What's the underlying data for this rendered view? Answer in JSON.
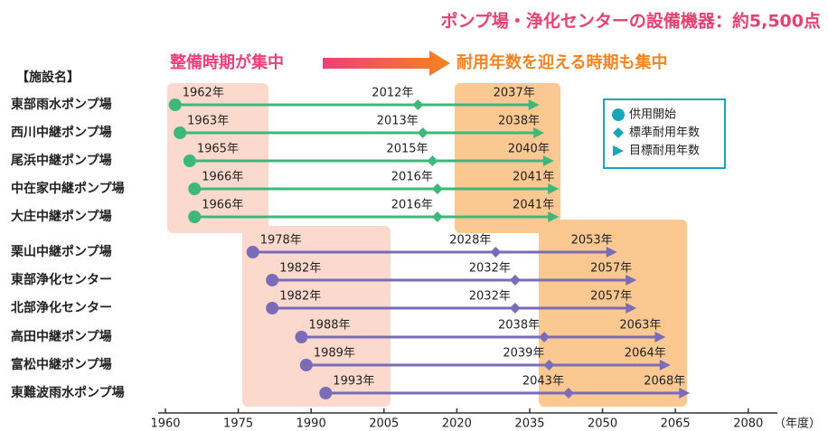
{
  "chart_data": {
    "type": "timeline",
    "title": "ポンプ場・浄化センターの設備機器：約5,500点",
    "annotations": [
      "整備時期が集中",
      "耐用年数を迎える時期も集中"
    ],
    "category_header": "【施設名】",
    "categories": [
      "東部雨水ポンプ場",
      "西川中継ポンプ場",
      "尾浜中継ポンプ場",
      "中在家中継ポンプ場",
      "大庄中継ポンプ場",
      "栗山中継ポンプ場",
      "東部浄化センター",
      "北部浄化センター",
      "高田中継ポンプ場",
      "富松中継ポンプ場",
      "東難波雨水ポンプ場"
    ],
    "row_colors": [
      "#3db878",
      "#3db878",
      "#3db878",
      "#3db878",
      "#3db878",
      "#7b6cb8",
      "#7b6cb8",
      "#7b6cb8",
      "#7b6cb8",
      "#7b6cb8",
      "#7b6cb8"
    ],
    "series": [
      {
        "name": "供用開始",
        "color": "#1aa6b7",
        "marker": "circle",
        "values": [
          1962,
          1963,
          1965,
          1966,
          1966,
          1978,
          1982,
          1982,
          1988,
          1989,
          1993
        ],
        "value_labels": [
          "1962年",
          "1963年",
          "1965年",
          "1966年",
          "1966年",
          "1978年",
          "1982年",
          "1982年",
          "1988年",
          "1989年",
          "1993年"
        ]
      },
      {
        "name": "標準耐用年数",
        "color": "#1aa6b7",
        "marker": "diamond",
        "values": [
          2012,
          2013,
          2015,
          2016,
          2016,
          2028,
          2032,
          2032,
          2038,
          2039,
          2043
        ],
        "value_labels": [
          "2012年",
          "2013年",
          "2015年",
          "2016年",
          "2016年",
          "2028年",
          "2032年",
          "2032年",
          "2038年",
          "2039年",
          "2043年"
        ]
      },
      {
        "name": "目標耐用年数",
        "color": "#1aa6b7",
        "marker": "arrow",
        "values": [
          2037,
          2038,
          2040,
          2041,
          2041,
          2053,
          2057,
          2057,
          2063,
          2064,
          2068
        ],
        "value_labels": [
          "2037年",
          "2038年",
          "2040年",
          "2041年",
          "2041年",
          "2053年",
          "2057年",
          "2057年",
          "2063年",
          "2064年",
          "2068年"
        ]
      }
    ],
    "xlim": [
      1960,
      2086
    ],
    "xticks": [
      1960,
      1975,
      1990,
      2005,
      2020,
      2035,
      2050,
      2065,
      2080
    ],
    "xlabel": "（年度）"
  }
}
